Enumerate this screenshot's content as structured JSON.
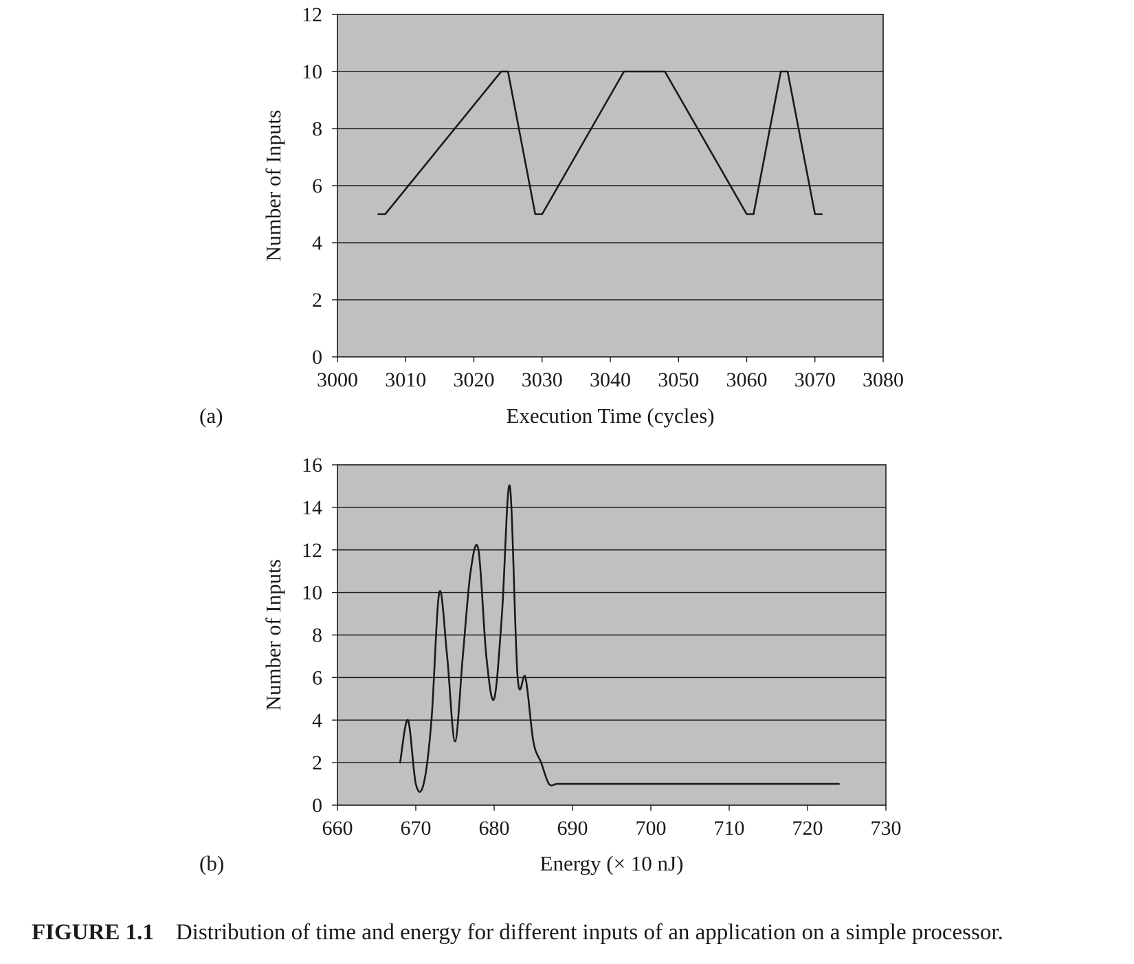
{
  "caption": {
    "label": "FIGURE 1.1",
    "text": "Distribution of time and energy for different inputs of an application on a simple processor."
  },
  "colors": {
    "plot_background": "#c0c0c0",
    "line": "#1a1a1a",
    "grid": "#1a1a1a"
  },
  "chart_data": [
    {
      "panel": "(a)",
      "type": "line",
      "title": "",
      "xlabel": "Execution Time (cycles)",
      "ylabel": "Number of Inputs",
      "xlim": [
        3000,
        3080
      ],
      "ylim": [
        0,
        12
      ],
      "xticks": [
        3000,
        3010,
        3020,
        3030,
        3040,
        3050,
        3060,
        3070,
        3080
      ],
      "yticks": [
        0,
        2,
        4,
        6,
        8,
        10,
        12
      ],
      "grid": "horizontal",
      "series": [
        {
          "x": [
            3006,
            3007,
            3024,
            3025,
            3029,
            3030,
            3042,
            3043,
            3047,
            3048,
            3060,
            3061,
            3065,
            3066,
            3070,
            3071
          ],
          "values": [
            5,
            5,
            10,
            10,
            5,
            5,
            10,
            10,
            10,
            10,
            5,
            5,
            10,
            10,
            5,
            5
          ]
        }
      ]
    },
    {
      "panel": "(b)",
      "type": "line",
      "title": "",
      "xlabel": "Energy (× 10 nJ)",
      "ylabel": "Number of Inputs",
      "xlim": [
        660,
        730
      ],
      "ylim": [
        0,
        16
      ],
      "xticks": [
        660,
        670,
        680,
        690,
        700,
        710,
        720,
        730
      ],
      "yticks": [
        0,
        2,
        4,
        6,
        8,
        10,
        12,
        14,
        16
      ],
      "grid": "horizontal",
      "series": [
        {
          "x": [
            668,
            669,
            670,
            671,
            672,
            673,
            674,
            675,
            676,
            677,
            678,
            679,
            680,
            681,
            682,
            683,
            684,
            685,
            686,
            687,
            688,
            689,
            690,
            700,
            710,
            720,
            724
          ],
          "values": [
            2,
            4,
            1,
            1,
            4,
            10,
            7,
            3,
            7,
            11,
            12,
            7,
            5,
            9,
            15,
            6,
            6,
            3,
            2,
            1,
            1,
            1,
            1,
            1,
            1,
            1,
            1
          ]
        }
      ]
    }
  ]
}
